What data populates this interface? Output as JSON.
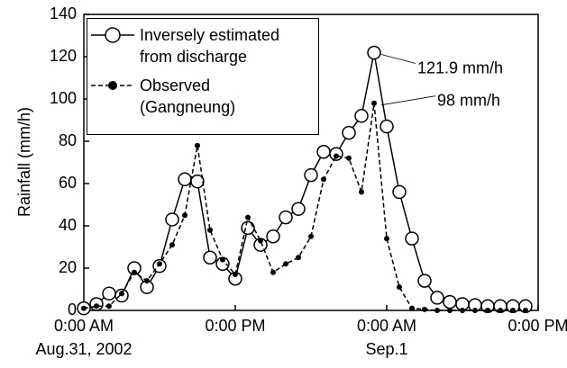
{
  "chart_data": {
    "type": "line",
    "y_label": "Rainfall (mm/h)",
    "x": [
      0,
      1,
      2,
      3,
      4,
      5,
      6,
      7,
      8,
      9,
      10,
      11,
      12,
      13,
      14,
      15,
      16,
      17,
      18,
      19,
      20,
      21,
      22,
      23,
      24,
      25,
      26,
      27,
      28,
      29,
      30,
      31,
      32,
      33,
      34,
      35
    ],
    "series": [
      {
        "name": "Inversely estimated\nfrom discharge",
        "color": "#000000",
        "marker": "open-circle",
        "dash": false,
        "values": [
          1,
          3,
          8,
          7,
          20,
          11,
          21,
          43,
          62,
          61,
          25,
          22,
          15,
          39,
          31,
          35,
          44,
          48,
          64,
          75,
          74,
          84,
          92,
          121.9,
          87,
          56,
          34,
          14,
          6,
          4,
          3,
          2.5,
          2,
          2,
          2,
          2
        ]
      },
      {
        "name": "Observed\n(Gangneung)",
        "color": "#000000",
        "marker": "filled-dot",
        "dash": true,
        "values": [
          1,
          2,
          2,
          8,
          18,
          14,
          22,
          31,
          45,
          78,
          38,
          24,
          17,
          44,
          33,
          18,
          22,
          25,
          35,
          62,
          73,
          72,
          56,
          98,
          34,
          11,
          1,
          0.5,
          0,
          0,
          0,
          0,
          0,
          0,
          0,
          0
        ]
      }
    ],
    "annotations": [
      {
        "series": 0,
        "text": "121.9 mm/h"
      },
      {
        "series": 1,
        "text": "98 mm/h"
      }
    ],
    "xlim": [
      0,
      36
    ],
    "xticks": [
      {
        "value": 0,
        "label": "0:00 AM"
      },
      {
        "value": 12,
        "label": "0:00 PM"
      },
      {
        "value": 24,
        "label": "0:00 AM"
      },
      {
        "value": 36,
        "label": "0:00 PM"
      }
    ],
    "date_labels": [
      {
        "value": 0,
        "label": "Aug.31, 2002"
      },
      {
        "value": 24,
        "label": "Sep.1"
      }
    ],
    "ylim": [
      0,
      140
    ],
    "yticks": [
      0,
      20,
      40,
      60,
      80,
      100,
      120,
      140
    ],
    "grid": false
  }
}
